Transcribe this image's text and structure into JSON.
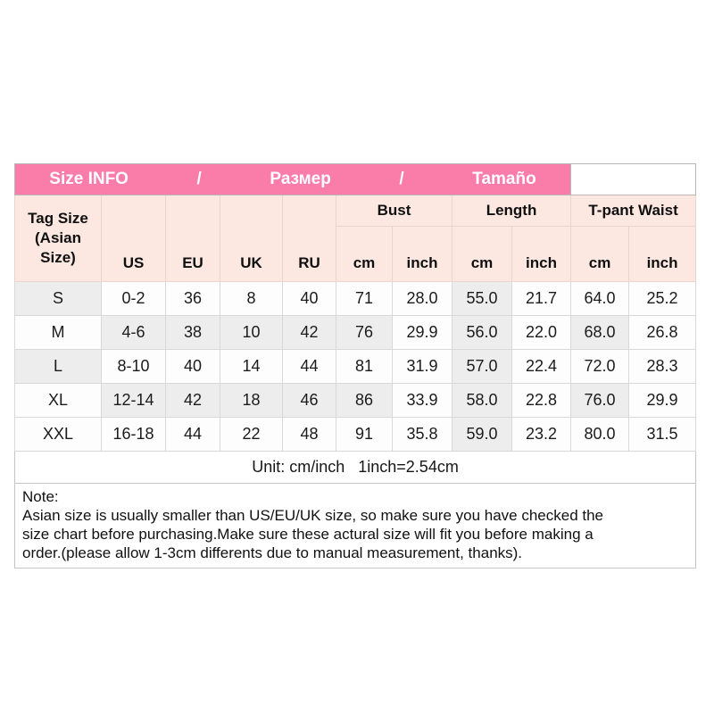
{
  "banner": {
    "segments": [
      "Size INFO",
      "/",
      "Размер",
      "/",
      "Tamaño"
    ]
  },
  "table": {
    "header": {
      "tag_size": "Tag Size\n(Asian\nSize)",
      "systems": [
        "US",
        "EU",
        "UK",
        "RU"
      ],
      "groups": [
        {
          "label": "Bust",
          "sub": [
            "cm",
            "inch"
          ]
        },
        {
          "label": "Length",
          "sub": [
            "cm",
            "inch"
          ]
        },
        {
          "label": "T-pant Waist",
          "sub": [
            "cm",
            "inch"
          ]
        }
      ]
    },
    "rows": [
      {
        "cells": [
          "S",
          "0-2",
          "36",
          "8",
          "40",
          "71",
          "28.0",
          "55.0",
          "21.7",
          "64.0",
          "25.2"
        ],
        "shaded": [
          0,
          7
        ]
      },
      {
        "cells": [
          "M",
          "4-6",
          "38",
          "10",
          "42",
          "76",
          "29.9",
          "56.0",
          "22.0",
          "68.0",
          "26.8"
        ],
        "shaded": [
          1,
          2,
          3,
          4,
          5,
          7,
          9
        ]
      },
      {
        "cells": [
          "L",
          "8-10",
          "40",
          "14",
          "44",
          "81",
          "31.9",
          "57.0",
          "22.4",
          "72.0",
          "28.3"
        ],
        "shaded": [
          0,
          7
        ]
      },
      {
        "cells": [
          "XL",
          "12-14",
          "42",
          "18",
          "46",
          "86",
          "33.9",
          "58.0",
          "22.8",
          "76.0",
          "29.9"
        ],
        "shaded": [
          1,
          2,
          3,
          4,
          5,
          7,
          9
        ]
      },
      {
        "cells": [
          "XXL",
          "16-18",
          "44",
          "22",
          "48",
          "91",
          "35.8",
          "59.0",
          "23.2",
          "80.0",
          "31.5"
        ],
        "shaded": [
          7
        ]
      }
    ],
    "unit": "Unit: cm/inch   1inch=2.54cm",
    "note": "Note:\nAsian size is usually smaller than US/EU/UK size, so make sure you have checked the\nsize chart before purchasing.Make sure these actural size will fit you before making a\norder.(please allow 1-3cm differents due to manual measurement, thanks)."
  },
  "colors": {
    "banner_pink": "#f97ca9",
    "header_peach": "#fce7e1",
    "shaded_cell": "#ededee",
    "cell_bg": "#fdfdfd",
    "outer_border": "#9f9f9f"
  }
}
